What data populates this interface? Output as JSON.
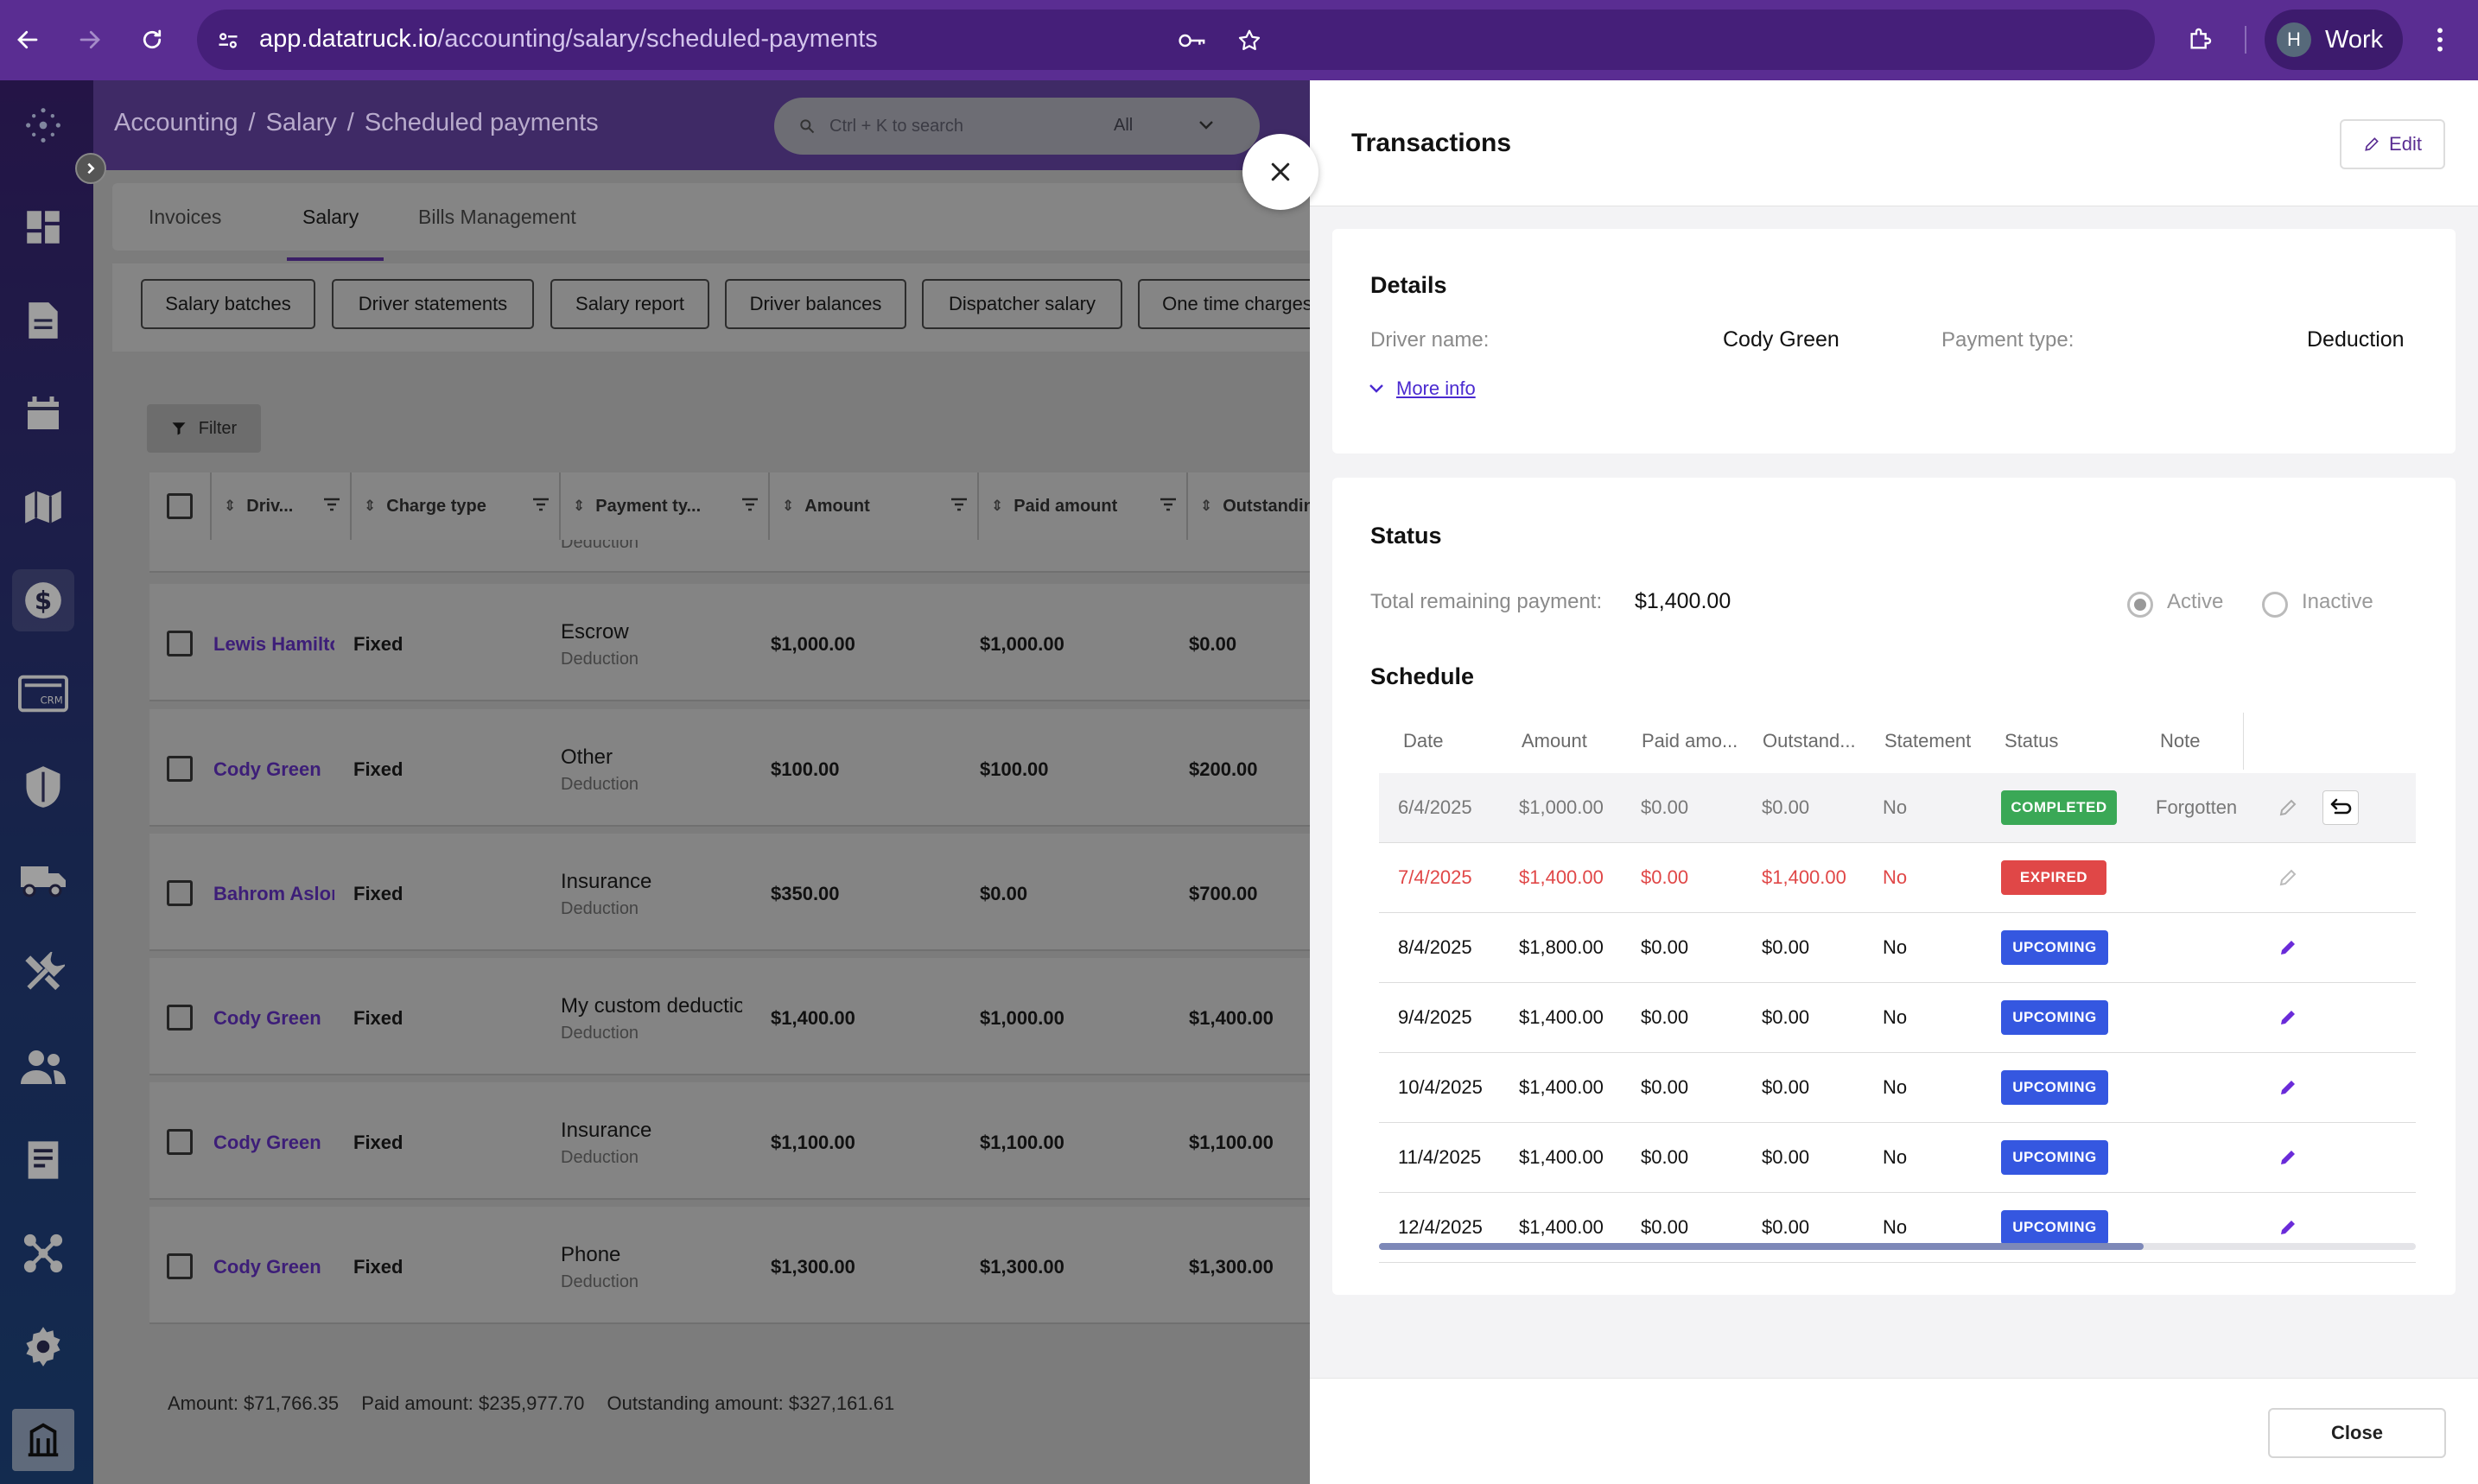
{
  "browser": {
    "url_host": "app.datatruck.io",
    "url_path": "/accounting/salary/scheduled-payments",
    "profile_initial": "H",
    "profile_label": "Work"
  },
  "header": {
    "breadcrumb": [
      "Accounting",
      "Salary",
      "Scheduled payments"
    ],
    "search_placeholder": "Ctrl + K to search",
    "search_scope": "All"
  },
  "tabs": [
    "Invoices",
    "Salary",
    "Bills Management"
  ],
  "subtabs": [
    "Salary batches",
    "Driver statements",
    "Salary report",
    "Driver balances",
    "Dispatcher salary",
    "One time charges"
  ],
  "filter_label": "Filter",
  "table": {
    "columns": [
      "Driv...",
      "Charge type",
      "Payment ty...",
      "Amount",
      "Paid amount",
      "Outstanding"
    ],
    "partial_row_sub": "Deduction",
    "rows": [
      {
        "driver": "Lewis Hamilton",
        "charge": "Fixed",
        "ptype": "Escrow",
        "ptype_sub": "Deduction",
        "amount": "$1,000.00",
        "paid": "$1,000.00",
        "outstanding": "$0.00"
      },
      {
        "driver": "Cody Green",
        "charge": "Fixed",
        "ptype": "Other",
        "ptype_sub": "Deduction",
        "amount": "$100.00",
        "paid": "$100.00",
        "outstanding": "$200.00"
      },
      {
        "driver": "Bahrom Aslonov",
        "charge": "Fixed",
        "ptype": "Insurance",
        "ptype_sub": "Deduction",
        "amount": "$350.00",
        "paid": "$0.00",
        "outstanding": "$700.00"
      },
      {
        "driver": "Cody Green",
        "charge": "Fixed",
        "ptype": "My custom deduction",
        "ptype_sub": "Deduction",
        "amount": "$1,400.00",
        "paid": "$1,000.00",
        "outstanding": "$1,400.00"
      },
      {
        "driver": "Cody Green",
        "charge": "Fixed",
        "ptype": "Insurance",
        "ptype_sub": "Deduction",
        "amount": "$1,100.00",
        "paid": "$1,100.00",
        "outstanding": "$1,100.00"
      },
      {
        "driver": "Cody Green",
        "charge": "Fixed",
        "ptype": "Phone",
        "ptype_sub": "Deduction",
        "amount": "$1,300.00",
        "paid": "$1,300.00",
        "outstanding": "$1,300.00"
      }
    ]
  },
  "footer_totals": {
    "amount": "Amount: $71,766.35",
    "paid": "Paid amount: $235,977.70",
    "outstanding": "Outstanding amount: $327,161.61"
  },
  "panel": {
    "title": "Transactions",
    "edit_label": "Edit",
    "details": {
      "title": "Details",
      "driver_label": "Driver name:",
      "driver_value": "Cody Green",
      "ptype_label": "Payment type:",
      "ptype_value": "Deduction",
      "more_info": "More info"
    },
    "status": {
      "title": "Status",
      "remaining_label": "Total remaining payment:",
      "remaining_value": "$1,400.00",
      "active_label": "Active",
      "inactive_label": "Inactive"
    },
    "schedule": {
      "title": "Schedule",
      "columns": [
        "Date",
        "Amount",
        "Paid amo...",
        "Outstand...",
        "Statement",
        "Status",
        "Note"
      ],
      "rows": [
        {
          "date": "6/4/2025",
          "amount": "$1,000.00",
          "paid": "$0.00",
          "outstanding": "$0.00",
          "statement": "No",
          "status": "COMPLETED",
          "note": "Forgotten"
        },
        {
          "date": "7/4/2025",
          "amount": "$1,400.00",
          "paid": "$0.00",
          "outstanding": "$1,400.00",
          "statement": "No",
          "status": "EXPIRED",
          "note": ""
        },
        {
          "date": "8/4/2025",
          "amount": "$1,800.00",
          "paid": "$0.00",
          "outstanding": "$0.00",
          "statement": "No",
          "status": "UPCOMING",
          "note": ""
        },
        {
          "date": "9/4/2025",
          "amount": "$1,400.00",
          "paid": "$0.00",
          "outstanding": "$0.00",
          "statement": "No",
          "status": "UPCOMING",
          "note": ""
        },
        {
          "date": "10/4/2025",
          "amount": "$1,400.00",
          "paid": "$0.00",
          "outstanding": "$0.00",
          "statement": "No",
          "status": "UPCOMING",
          "note": ""
        },
        {
          "date": "11/4/2025",
          "amount": "$1,400.00",
          "paid": "$0.00",
          "outstanding": "$0.00",
          "statement": "No",
          "status": "UPCOMING",
          "note": ""
        },
        {
          "date": "12/4/2025",
          "amount": "$1,400.00",
          "paid": "$0.00",
          "outstanding": "$0.00",
          "statement": "No",
          "status": "UPCOMING",
          "note": ""
        }
      ]
    },
    "close_label": "Close"
  },
  "colors": {
    "brand": "#5a2d92",
    "completed": "#3aa856",
    "expired": "#e04747",
    "upcoming": "#3557e0"
  }
}
